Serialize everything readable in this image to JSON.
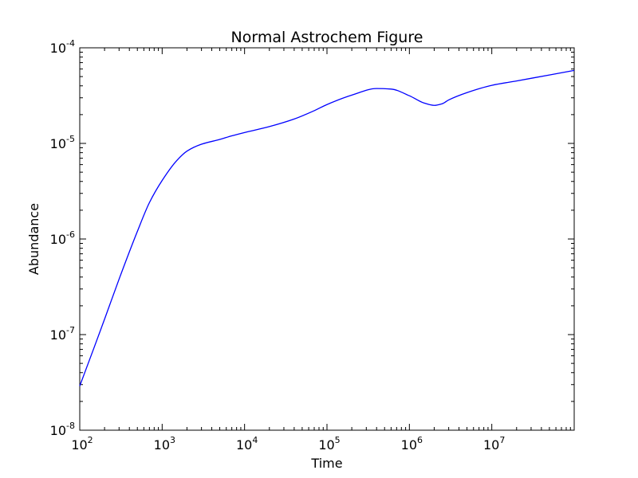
{
  "chart_data": {
    "type": "line",
    "title": "Normal Astrochem Figure",
    "xlabel": "Time",
    "ylabel": "Abundance",
    "xscale": "log",
    "yscale": "log",
    "xlim": [
      100,
      100000000
    ],
    "ylim": [
      1e-08,
      0.0001
    ],
    "grid": false,
    "x_ticks": [
      {
        "base": "10",
        "exp": "2",
        "value": 100
      },
      {
        "base": "10",
        "exp": "3",
        "value": 1000
      },
      {
        "base": "10",
        "exp": "4",
        "value": 10000
      },
      {
        "base": "10",
        "exp": "5",
        "value": 100000
      },
      {
        "base": "10",
        "exp": "6",
        "value": 1000000
      },
      {
        "base": "10",
        "exp": "7",
        "value": 10000000
      }
    ],
    "y_ticks": [
      {
        "base": "10",
        "exp": "-8",
        "value": 1e-08
      },
      {
        "base": "10",
        "exp": "-7",
        "value": 1e-07
      },
      {
        "base": "10",
        "exp": "-6",
        "value": 1e-06
      },
      {
        "base": "10",
        "exp": "-5",
        "value": 1e-05
      },
      {
        "base": "10",
        "exp": "-4",
        "value": 0.0001
      }
    ],
    "series": [
      {
        "color": "#0000ff",
        "x": [
          100,
          150,
          200,
          300,
          500,
          700,
          1000,
          1500,
          2000,
          3000,
          5000,
          7000,
          10000,
          20000,
          40000,
          70000,
          100000,
          200000,
          400000,
          600000,
          1000000,
          1500000,
          2000000,
          2500000,
          3000000,
          5000000,
          10000000,
          20000000,
          50000000,
          100000000
        ],
        "y": [
          2.9e-08,
          7.4e-08,
          1.45e-07,
          3.8e-07,
          1.2e-06,
          2.4e-06,
          4.1e-06,
          6.6e-06,
          8.3e-06,
          9.8e-06,
          1.1e-05,
          1.2e-05,
          1.3e-05,
          1.5e-05,
          1.8e-05,
          2.2e-05,
          2.55e-05,
          3.2e-05,
          3.75e-05,
          3.7e-05,
          3.15e-05,
          2.65e-05,
          2.5e-05,
          2.6e-05,
          2.85e-05,
          3.4e-05,
          4.05e-05,
          4.5e-05,
          5.2e-05,
          5.8e-05
        ]
      }
    ]
  }
}
